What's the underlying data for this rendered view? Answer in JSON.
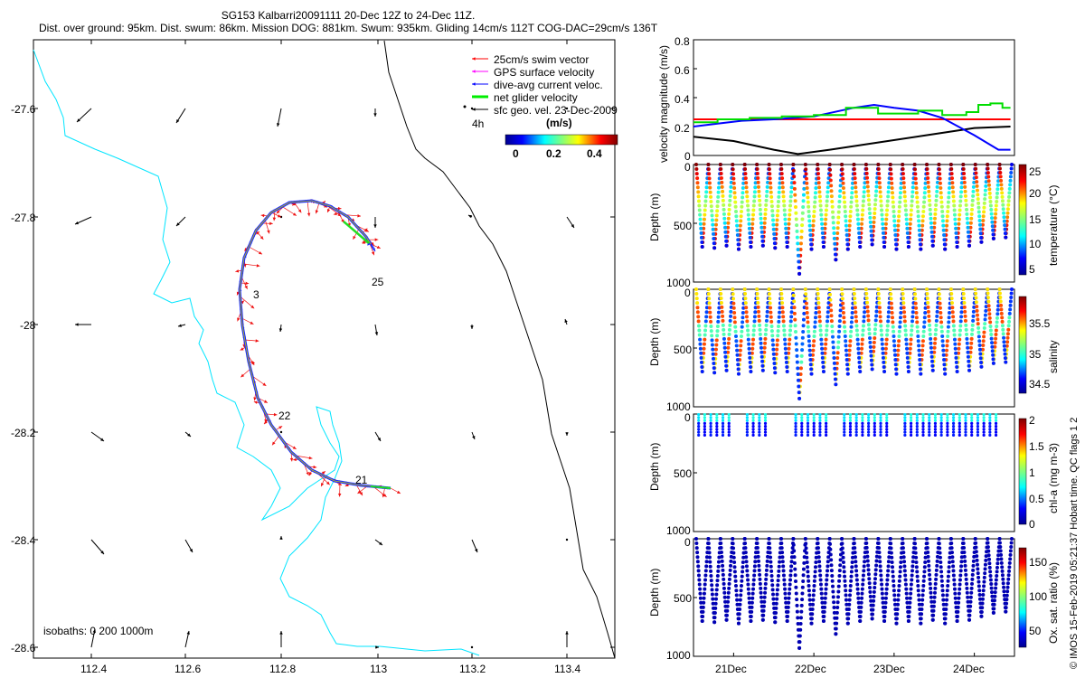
{
  "title": {
    "line1": "SG153 Kalbarri20091111 20-Dec 12Z to 24-Dec 11Z.",
    "line2": "Dist. over ground: 95km. Dist. swum: 86km. Mission DOG: 881km. Swum: 935km. Gliding 14cm/s 112T COG-DAC=29cm/s 136T"
  },
  "map": {
    "xticks": [
      "112.4",
      "112.6",
      "112.8",
      "113",
      "113.2",
      "113.4"
    ],
    "yticks": [
      "-27.6",
      "-27.8",
      "-28",
      "-28.2",
      "-28.4",
      "-28.6"
    ],
    "legend": [
      "25cm/s swim vector",
      "GPS surface velocity",
      "dive-avg current veloc.",
      "net glider velocity",
      "sfc geo. vel. 23-Dec-2009"
    ],
    "legend_colors": [
      "#ff0000",
      "#ff00ff",
      "#0000ff",
      "#00ee00",
      "#000000"
    ],
    "timescale": "4h",
    "colorbar_label": "(m/s)",
    "colorbar_ticks": [
      "0",
      "0.2",
      "0.4"
    ],
    "day_labels": [
      "3",
      "25",
      "22",
      "21"
    ],
    "isobaths": "isobaths: 0   200  1000m",
    "coast_color": "#00e5ff",
    "track_color": "#1a2bff",
    "swim_color": "#ee1111"
  },
  "chart_data": [
    {
      "type": "line",
      "ylabel": "velocity magnitude (m/s)",
      "ylim": [
        0,
        0.8
      ],
      "yticks": [
        "0.8",
        "0.6",
        "0.4",
        "0.2",
        "0"
      ],
      "x_days": [
        20.5,
        24.5
      ],
      "series": [
        {
          "name": "swim",
          "color": "#ff0000",
          "x": [
            20.5,
            24.45
          ],
          "y": [
            0.25,
            0.25
          ]
        },
        {
          "name": "surface geo",
          "color": "#000000",
          "x": [
            20.5,
            21.0,
            21.5,
            21.8,
            22.2,
            22.8,
            23.4,
            24.0,
            24.45
          ],
          "y": [
            0.13,
            0.1,
            0.04,
            0.01,
            0.04,
            0.09,
            0.14,
            0.19,
            0.2
          ]
        },
        {
          "name": "dive-avg current",
          "color": "#0000ff",
          "x": [
            20.5,
            20.8,
            21.1,
            21.5,
            22.0,
            22.5,
            22.75,
            23.0,
            23.3,
            23.6,
            24.0,
            24.3,
            24.45
          ],
          "y": [
            0.2,
            0.22,
            0.24,
            0.25,
            0.27,
            0.33,
            0.35,
            0.33,
            0.31,
            0.26,
            0.14,
            0.04,
            0.04
          ]
        },
        {
          "name": "net glider",
          "color": "#00dd00",
          "x": [
            20.5,
            20.8,
            20.8,
            21.2,
            21.2,
            21.6,
            21.6,
            22.0,
            22.0,
            22.4,
            22.4,
            22.8,
            22.8,
            23.3,
            23.3,
            23.6,
            23.6,
            23.9,
            23.9,
            24.05,
            24.05,
            24.2,
            24.2,
            24.35,
            24.35,
            24.45
          ],
          "y": [
            0.23,
            0.23,
            0.25,
            0.25,
            0.26,
            0.26,
            0.27,
            0.27,
            0.28,
            0.28,
            0.33,
            0.33,
            0.29,
            0.29,
            0.31,
            0.31,
            0.28,
            0.28,
            0.3,
            0.3,
            0.35,
            0.35,
            0.36,
            0.36,
            0.33,
            0.33
          ]
        }
      ]
    },
    {
      "type": "scatter",
      "ylabel": "Depth (m)",
      "ylim": [
        0,
        1000
      ],
      "yticks": [
        "0",
        "500",
        "1000"
      ],
      "cbar_label": "temperature (°C)",
      "cbar_ticks": [
        "25",
        "20",
        "15",
        "10",
        "5"
      ],
      "max_depths": [
        700,
        710,
        690,
        720,
        700,
        690,
        710,
        700,
        930,
        720,
        700,
        810,
        720,
        700,
        680,
        700,
        720,
        700,
        720,
        690,
        720,
        700,
        690,
        660,
        630,
        620
      ]
    },
    {
      "type": "scatter",
      "ylabel": "Depth (m)",
      "ylim": [
        0,
        1000
      ],
      "yticks": [
        "0",
        "500",
        "1000"
      ],
      "cbar_label": "salinity",
      "cbar_ticks": [
        "35.5",
        "35",
        "34.5"
      ],
      "max_depths": [
        700,
        710,
        690,
        720,
        700,
        690,
        710,
        700,
        930,
        720,
        700,
        810,
        720,
        700,
        680,
        700,
        720,
        700,
        720,
        690,
        720,
        700,
        690,
        660,
        630,
        620
      ]
    },
    {
      "type": "scatter",
      "ylabel": "Depth (m)",
      "ylim": [
        0,
        1000
      ],
      "yticks": [
        "0",
        "500",
        "1000"
      ],
      "cbar_label": "chl-a (mg m-3)",
      "cbar_ticks": [
        "2",
        "1.5",
        "1",
        "0.5",
        "0"
      ]
    },
    {
      "type": "scatter",
      "ylabel": "Depth (m)",
      "ylim": [
        0,
        1000
      ],
      "yticks": [
        "0",
        "500",
        "1000"
      ],
      "cbar_label": "Ox. sat. ratio (%)",
      "cbar_ticks": [
        "150",
        "100",
        "50"
      ],
      "xticks": [
        "21Dec",
        "22Dec",
        "23Dec",
        "24Dec"
      ],
      "x_days": [
        20.5,
        24.5
      ]
    }
  ],
  "credit": "© IMOS 15-Feb-2019 05:21:37 Hobart time. QC flags 1  2"
}
